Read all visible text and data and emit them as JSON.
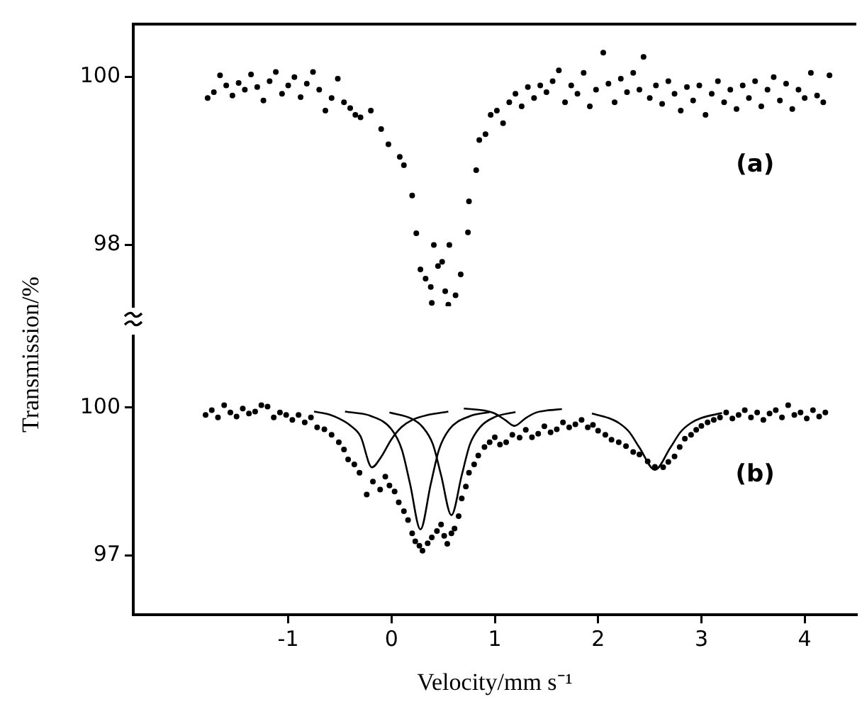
{
  "chart_data": [
    {
      "type": "scatter",
      "ylabel": "Transmission/%",
      "xlim": [
        -2.5,
        4.5
      ],
      "xticks": [
        -1,
        0,
        1,
        2,
        3,
        4
      ],
      "ylim": [
        97.27,
        100.63
      ],
      "yticks": [
        98,
        100
      ],
      "tick_labels": "y",
      "grid": false,
      "legend": false,
      "marker": "circle",
      "annotations": [
        "(a)"
      ],
      "series": [
        {
          "type": "scatter",
          "color": "#000000",
          "x": [
            -1.78,
            -1.72,
            -1.66,
            -1.6,
            -1.54,
            -1.48,
            -1.42,
            -1.36,
            -1.3,
            -1.24,
            -1.18,
            -1.12,
            -1.06,
            -1.0,
            -0.94,
            -0.88,
            -0.82,
            -0.76,
            -0.7,
            -0.64,
            -0.58,
            -0.52,
            -0.46,
            -0.4,
            -0.35,
            -0.3,
            -0.2,
            -0.1,
            -0.03,
            0.08,
            0.12,
            0.2,
            0.24,
            0.28,
            0.33,
            0.38,
            0.39,
            0.41,
            0.45,
            0.49,
            0.52,
            0.55,
            0.56,
            0.62,
            0.67,
            0.74,
            0.75,
            0.82,
            0.85,
            0.91,
            0.96,
            1.02,
            1.08,
            1.14,
            1.2,
            1.26,
            1.32,
            1.38,
            1.44,
            1.5,
            1.56,
            1.62,
            1.68,
            1.74,
            1.8,
            1.86,
            1.92,
            1.98,
            2.05,
            2.1,
            2.16,
            2.22,
            2.28,
            2.34,
            2.4,
            2.44,
            2.5,
            2.56,
            2.62,
            2.68,
            2.74,
            2.8,
            2.86,
            2.92,
            2.98,
            3.04,
            3.1,
            3.16,
            3.22,
            3.28,
            3.34,
            3.4,
            3.46,
            3.52,
            3.58,
            3.64,
            3.7,
            3.76,
            3.82,
            3.88,
            3.94,
            4.0,
            4.06,
            4.12,
            4.18,
            4.24
          ],
          "values": [
            99.75,
            99.82,
            100.02,
            99.9,
            99.78,
            99.93,
            99.85,
            100.03,
            99.88,
            99.72,
            99.95,
            100.06,
            99.8,
            99.9,
            100.0,
            99.76,
            99.92,
            100.06,
            99.85,
            99.6,
            99.75,
            99.98,
            99.7,
            99.63,
            99.55,
            99.52,
            99.6,
            99.38,
            99.2,
            99.05,
            98.95,
            98.59,
            98.14,
            97.71,
            97.6,
            97.5,
            97.31,
            98.0,
            97.75,
            97.8,
            97.45,
            97.29,
            98.0,
            97.4,
            97.65,
            98.15,
            98.52,
            98.89,
            99.25,
            99.32,
            99.55,
            99.6,
            99.45,
            99.7,
            99.8,
            99.65,
            99.88,
            99.75,
            99.9,
            99.82,
            99.95,
            100.08,
            99.7,
            99.9,
            99.8,
            100.05,
            99.65,
            99.85,
            100.29,
            99.92,
            99.7,
            99.98,
            99.82,
            100.05,
            99.85,
            100.24,
            99.75,
            99.9,
            99.68,
            99.95,
            99.8,
            99.6,
            99.88,
            99.72,
            99.9,
            99.55,
            99.8,
            99.95,
            99.7,
            99.85,
            99.62,
            99.9,
            99.75,
            99.95,
            99.65,
            99.85,
            100.0,
            99.72,
            99.92,
            99.62,
            99.85,
            99.75,
            100.05,
            99.78,
            99.7,
            100.02
          ]
        }
      ]
    },
    {
      "type": "scatter",
      "xlabel": "Velocity/mm s⁻¹",
      "xlim": [
        -2.5,
        4.5
      ],
      "xticks": [
        -1,
        0,
        1,
        2,
        3,
        4
      ],
      "ylim": [
        95.8,
        101.45
      ],
      "yticks": [
        97,
        100
      ],
      "grid": false,
      "legend": false,
      "marker": "circle",
      "annotations": [
        "(b)"
      ],
      "series": [
        {
          "type": "scatter",
          "color": "#000000",
          "x": [
            -1.8,
            -1.74,
            -1.68,
            -1.62,
            -1.56,
            -1.5,
            -1.44,
            -1.38,
            -1.32,
            -1.26,
            -1.2,
            -1.14,
            -1.08,
            -1.02,
            -0.96,
            -0.9,
            -0.84,
            -0.78,
            -0.72,
            -0.65,
            -0.58,
            -0.51,
            -0.46,
            -0.42,
            -0.36,
            -0.31,
            -0.24,
            -0.18,
            -0.11,
            -0.06,
            -0.02,
            0.03,
            0.07,
            0.12,
            0.16,
            0.2,
            0.23,
            0.27,
            0.3,
            0.35,
            0.39,
            0.44,
            0.48,
            0.51,
            0.54,
            0.58,
            0.61,
            0.65,
            0.68,
            0.72,
            0.75,
            0.8,
            0.84,
            0.9,
            0.95,
            1.0,
            1.05,
            1.11,
            1.17,
            1.24,
            1.3,
            1.36,
            1.42,
            1.48,
            1.54,
            1.6,
            1.66,
            1.72,
            1.78,
            1.84,
            1.9,
            1.95,
            2.0,
            2.07,
            2.13,
            2.2,
            2.27,
            2.34,
            2.4,
            2.48,
            2.55,
            2.63,
            2.68,
            2.74,
            2.79,
            2.84,
            2.9,
            2.95,
            3.0,
            3.06,
            3.12,
            3.18,
            3.24,
            3.3,
            3.36,
            3.42,
            3.48,
            3.54,
            3.6,
            3.66,
            3.72,
            3.78,
            3.84,
            3.9,
            3.96,
            4.02,
            4.08,
            4.14,
            4.2
          ],
          "values": [
            99.85,
            99.95,
            99.8,
            100.05,
            99.9,
            99.82,
            99.98,
            99.88,
            99.92,
            100.05,
            100.02,
            99.8,
            99.9,
            99.85,
            99.75,
            99.85,
            99.7,
            99.8,
            99.6,
            99.56,
            99.45,
            99.3,
            99.15,
            98.95,
            98.85,
            98.68,
            98.24,
            98.5,
            98.34,
            98.6,
            98.42,
            98.3,
            98.08,
            97.9,
            97.72,
            97.45,
            97.29,
            97.2,
            97.1,
            97.25,
            97.37,
            97.5,
            97.63,
            97.4,
            97.24,
            97.45,
            97.55,
            97.8,
            98.16,
            98.4,
            98.68,
            98.85,
            99.03,
            99.2,
            99.3,
            99.4,
            99.25,
            99.3,
            99.45,
            99.39,
            99.55,
            99.4,
            99.47,
            99.62,
            99.5,
            99.56,
            99.7,
            99.6,
            99.66,
            99.75,
            99.6,
            99.65,
            99.53,
            99.45,
            99.35,
            99.3,
            99.22,
            99.1,
            99.05,
            98.91,
            98.8,
            98.79,
            98.9,
            99.01,
            99.2,
            99.37,
            99.45,
            99.55,
            99.63,
            99.7,
            99.75,
            99.8,
            99.9,
            99.78,
            99.85,
            99.95,
            99.8,
            99.9,
            99.75,
            99.88,
            99.95,
            99.8,
            100.05,
            99.85,
            99.9,
            99.78,
            99.95,
            99.82,
            99.9
          ]
        },
        {
          "type": "line",
          "color": "#000000",
          "marker": "none",
          "x": [
            -0.75,
            -0.6,
            -0.5,
            -0.4,
            -0.3,
            -0.19,
            -0.1,
            0.0,
            0.1,
            0.2,
            0.35,
            0.55
          ],
          "values": [
            99.92,
            99.86,
            99.77,
            99.64,
            99.42,
            98.79,
            99.0,
            99.36,
            99.61,
            99.75,
            99.85,
            99.92
          ]
        },
        {
          "type": "line",
          "color": "#000000",
          "marker": "none",
          "x": [
            -0.45,
            -0.2,
            0.0,
            0.1,
            0.18,
            0.28,
            0.38,
            0.46,
            0.56,
            0.75,
            0.95
          ],
          "values": [
            99.92,
            99.83,
            99.56,
            99.15,
            98.45,
            97.53,
            98.45,
            99.15,
            99.56,
            99.82,
            99.91
          ]
        },
        {
          "type": "line",
          "color": "#000000",
          "marker": "none",
          "x": [
            -0.02,
            0.2,
            0.3,
            0.4,
            0.48,
            0.58,
            0.68,
            0.76,
            0.86,
            1.0,
            1.2
          ],
          "values": [
            99.9,
            99.77,
            99.61,
            99.26,
            98.63,
            97.82,
            98.63,
            99.26,
            99.61,
            99.81,
            99.91
          ]
        },
        {
          "type": "line",
          "color": "#000000",
          "marker": "none",
          "x": [
            0.7,
            0.9,
            1.0,
            1.1,
            1.19,
            1.3,
            1.4,
            1.5,
            1.65
          ],
          "values": [
            99.98,
            99.94,
            99.88,
            99.75,
            99.63,
            99.79,
            99.9,
            99.94,
            99.97
          ]
        },
        {
          "type": "line",
          "color": "#000000",
          "marker": "none",
          "x": [
            1.94,
            2.1,
            2.2,
            2.3,
            2.4,
            2.55,
            2.7,
            2.8,
            2.9,
            3.0,
            3.2
          ],
          "values": [
            99.88,
            99.79,
            99.69,
            99.51,
            99.19,
            98.74,
            99.19,
            99.51,
            99.69,
            99.79,
            99.89
          ]
        }
      ]
    }
  ]
}
